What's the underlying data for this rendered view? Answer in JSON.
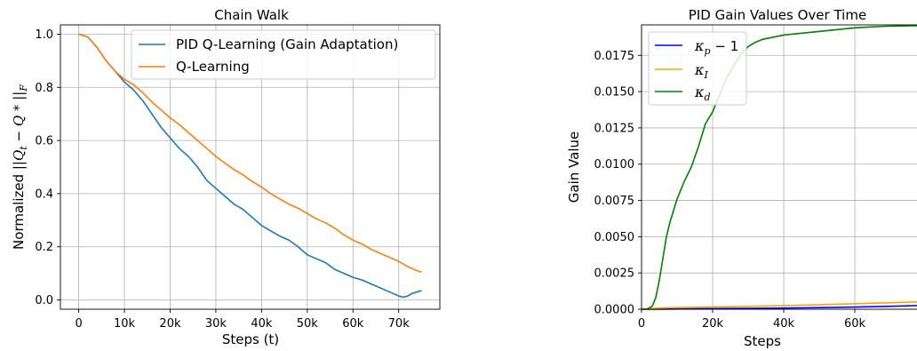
{
  "chart_data": [
    {
      "type": "line",
      "title": "Chain Walk",
      "xlabel": "Steps (t)",
      "ylabel": "Normalized ||Q_t - Q*||_F",
      "xlim": [
        -4000,
        79000
      ],
      "ylim": [
        -0.035,
        1.035
      ],
      "xticks": [
        0,
        10000,
        20000,
        30000,
        40000,
        50000,
        60000,
        70000
      ],
      "xtick_labels": [
        "0",
        "10k",
        "20k",
        "30k",
        "40k",
        "50k",
        "60k",
        "70k"
      ],
      "yticks": [
        0.0,
        0.2,
        0.4,
        0.6,
        0.8,
        1.0
      ],
      "ytick_labels": [
        "0.0",
        "0.2",
        "0.4",
        "0.6",
        "0.8",
        "1.0"
      ],
      "grid": true,
      "legend": "top-right",
      "series": [
        {
          "name": "PID Q-Learning (Gain Adaptation)",
          "color": "#1f77b4",
          "x": [
            0,
            2000,
            4000,
            6000,
            8000,
            10000,
            12000,
            14000,
            16000,
            18000,
            20000,
            22000,
            24000,
            26000,
            28000,
            30000,
            32000,
            34000,
            36000,
            38000,
            40000,
            42000,
            44000,
            46000,
            48000,
            50000,
            52000,
            54000,
            56000,
            58000,
            60000,
            62000,
            64000,
            66000,
            68000,
            70000,
            71000,
            72000,
            73000,
            74000,
            75000
          ],
          "y": [
            1.0,
            0.99,
            0.95,
            0.9,
            0.86,
            0.82,
            0.79,
            0.75,
            0.7,
            0.65,
            0.61,
            0.57,
            0.54,
            0.5,
            0.45,
            0.42,
            0.39,
            0.36,
            0.34,
            0.31,
            0.28,
            0.26,
            0.24,
            0.225,
            0.2,
            0.17,
            0.155,
            0.14,
            0.115,
            0.1,
            0.085,
            0.075,
            0.06,
            0.045,
            0.03,
            0.015,
            0.01,
            0.015,
            0.025,
            0.03,
            0.035
          ]
        },
        {
          "name": "Q-Learning",
          "color": "#ff7f0e",
          "x": [
            0,
            2000,
            4000,
            6000,
            8000,
            10000,
            12000,
            14000,
            16000,
            18000,
            20000,
            22000,
            24000,
            26000,
            28000,
            30000,
            32000,
            34000,
            36000,
            38000,
            40000,
            42000,
            44000,
            46000,
            48000,
            50000,
            52000,
            54000,
            56000,
            58000,
            60000,
            62000,
            64000,
            66000,
            68000,
            70000,
            72000,
            74000,
            75000
          ],
          "y": [
            1.0,
            0.99,
            0.95,
            0.9,
            0.86,
            0.83,
            0.81,
            0.78,
            0.745,
            0.715,
            0.685,
            0.66,
            0.63,
            0.6,
            0.57,
            0.54,
            0.515,
            0.49,
            0.47,
            0.445,
            0.425,
            0.4,
            0.38,
            0.36,
            0.345,
            0.325,
            0.305,
            0.29,
            0.27,
            0.245,
            0.225,
            0.21,
            0.19,
            0.175,
            0.16,
            0.145,
            0.125,
            0.11,
            0.105
          ]
        }
      ]
    },
    {
      "type": "line",
      "title": "PID Gain Values Over Time",
      "xlabel": "Steps",
      "ylabel": "Gain Value",
      "xlim": [
        0,
        80000
      ],
      "ylim": [
        0,
        0.0196
      ],
      "xticks": [
        0,
        20000,
        40000,
        60000
      ],
      "xtick_labels": [
        "0",
        "20k",
        "40k",
        "60k"
      ],
      "yticks": [
        0.0,
        0.0025,
        0.005,
        0.0075,
        0.01,
        0.0125,
        0.015,
        0.0175
      ],
      "ytick_labels": [
        "0.0000",
        "0.0025",
        "0.0050",
        "0.0075",
        "0.0100",
        "0.0125",
        "0.0150",
        "0.0175"
      ],
      "grid": true,
      "legend": "top-left",
      "series": [
        {
          "name": "κp − 1",
          "color": "#0000ff",
          "x": [
            0,
            5000,
            10000,
            20000,
            30000,
            40000,
            50000,
            60000,
            70000,
            80000
          ],
          "y": [
            0,
            0.0,
            2e-05,
            4e-05,
            6e-05,
            8e-05,
            0.00011,
            0.00015,
            0.0002,
            0.00027
          ]
        },
        {
          "name": "κI",
          "color": "#ffa500",
          "x": [
            0,
            3000,
            6000,
            10000,
            20000,
            30000,
            40000,
            50000,
            60000,
            70000,
            80000
          ],
          "y": [
            0,
            5e-05,
            0.0001,
            0.00012,
            0.00016,
            0.0002,
            0.00025,
            0.00031,
            0.00038,
            0.00045,
            0.00053
          ]
        },
        {
          "name": "κd",
          "color": "#008000",
          "x": [
            0,
            1500,
            3000,
            4000,
            5000,
            6000,
            7000,
            8000,
            9000,
            10000,
            12000,
            14000,
            16000,
            18000,
            19000,
            20000,
            22000,
            24000,
            26000,
            28000,
            30000,
            32000,
            34000,
            36000,
            38000,
            40000,
            44000,
            48000,
            52000,
            56000,
            60000,
            64000,
            68000,
            72000,
            76000,
            80000
          ],
          "y": [
            0,
            0.0,
            0.0002,
            0.0008,
            0.002,
            0.0035,
            0.005,
            0.006,
            0.0068,
            0.0076,
            0.0088,
            0.0098,
            0.0112,
            0.0128,
            0.0132,
            0.0136,
            0.0148,
            0.016,
            0.0168,
            0.0176,
            0.0181,
            0.0184,
            0.0186,
            0.0187,
            0.0188,
            0.0189,
            0.019,
            0.0191,
            0.0192,
            0.0193,
            0.0194,
            0.01945,
            0.0195,
            0.01952,
            0.01954,
            0.01955
          ]
        }
      ]
    }
  ]
}
